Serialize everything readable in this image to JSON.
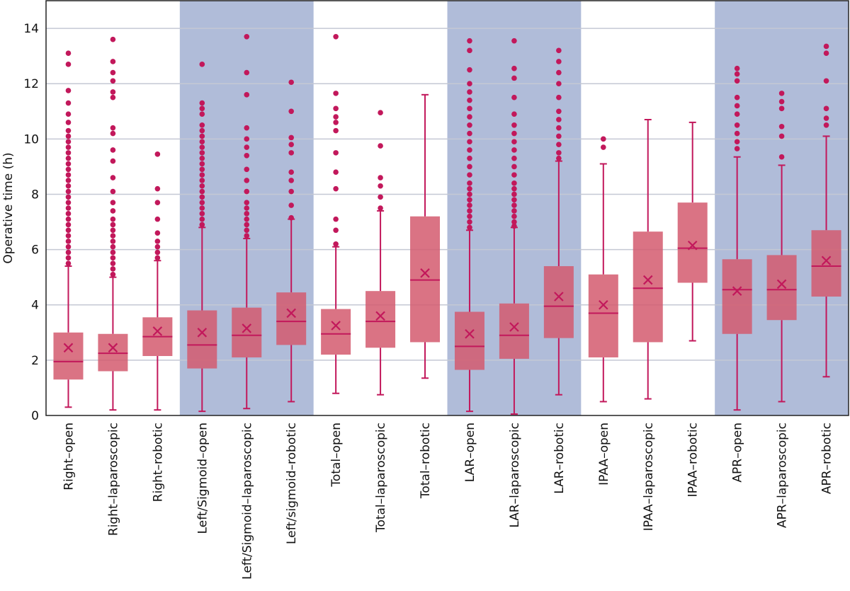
{
  "chart_data": {
    "type": "box",
    "title": "",
    "xlabel": "",
    "ylabel": "Operative time (h)",
    "ylim": [
      0,
      15
    ],
    "yticks": [
      0,
      2,
      4,
      6,
      8,
      10,
      12,
      14
    ],
    "grid": true,
    "colors": {
      "box": "#d45b6e",
      "line": "#c2185b",
      "outlier": "#c2185b",
      "shade": "#b0bcd9",
      "grid": "#c4c8d4",
      "axis": "#222222"
    },
    "groups": [
      {
        "name": "Right",
        "shaded": false
      },
      {
        "name": "Left/Sigmoid",
        "shaded": true
      },
      {
        "name": "Total",
        "shaded": false
      },
      {
        "name": "LAR",
        "shaded": true
      },
      {
        "name": "IPAA",
        "shaded": false
      },
      {
        "name": "APR",
        "shaded": true
      }
    ],
    "categories": [
      "Right–open",
      "Right–laparoscopic",
      "Right–robotic",
      "Left/Sigmoid–open",
      "Left/Sigmoid–laparoscopic",
      "Left/sigmoid–robotic",
      "Total–open",
      "Total–laparoscopic",
      "Total–robotic",
      "LAR–open",
      "LAR–laparoscopic",
      "LAR–robotic",
      "IPAA–open",
      "IPAA–laparoscopic",
      "IPAA–robotic",
      "APR–open",
      "APR–laparoscopic",
      "APR–robotic"
    ],
    "series": [
      {
        "name": "Right–open",
        "min": 0.3,
        "q1": 1.3,
        "median": 1.95,
        "q3": 3.0,
        "max": 5.4,
        "mean": 2.45,
        "outliers": [
          5.5,
          5.7,
          5.9,
          6.1,
          6.3,
          6.5,
          6.7,
          6.9,
          7.1,
          7.3,
          7.5,
          7.7,
          7.9,
          8.1,
          8.3,
          8.5,
          8.7,
          8.9,
          9.1,
          9.3,
          9.5,
          9.7,
          9.9,
          10.1,
          10.3,
          10.6,
          10.9,
          11.3,
          11.75,
          12.7,
          13.1
        ]
      },
      {
        "name": "Right–laparoscopic",
        "min": 0.2,
        "q1": 1.6,
        "median": 2.25,
        "q3": 2.95,
        "max": 5.0,
        "mean": 2.45,
        "outliers": [
          5.1,
          5.3,
          5.5,
          5.7,
          5.9,
          6.1,
          6.3,
          6.5,
          6.7,
          6.9,
          7.1,
          7.4,
          7.7,
          8.1,
          8.6,
          9.2,
          9.6,
          10.2,
          10.4,
          11.5,
          11.7,
          12.1,
          12.4,
          12.8,
          13.6
        ]
      },
      {
        "name": "Right–robotic",
        "min": 0.2,
        "q1": 2.15,
        "median": 2.85,
        "q3": 3.55,
        "max": 5.6,
        "mean": 3.05,
        "outliers": [
          5.7,
          5.9,
          6.1,
          6.3,
          6.6,
          7.1,
          7.7,
          8.2,
          9.45
        ]
      },
      {
        "name": "Left/Sigmoid–open",
        "min": 0.15,
        "q1": 1.7,
        "median": 2.55,
        "q3": 3.8,
        "max": 6.8,
        "mean": 3.0,
        "outliers": [
          6.9,
          7.1,
          7.3,
          7.5,
          7.7,
          7.9,
          8.1,
          8.3,
          8.5,
          8.7,
          8.9,
          9.1,
          9.3,
          9.5,
          9.7,
          9.9,
          10.1,
          10.3,
          10.5,
          10.9,
          11.1,
          11.3,
          12.7
        ]
      },
      {
        "name": "Left/Sigmoid–laparoscopic",
        "min": 0.25,
        "q1": 2.1,
        "median": 2.9,
        "q3": 3.9,
        "max": 6.4,
        "mean": 3.15,
        "outliers": [
          6.5,
          6.7,
          6.9,
          7.1,
          7.3,
          7.5,
          7.7,
          8.1,
          8.5,
          8.9,
          9.4,
          9.7,
          10.0,
          10.4,
          11.6,
          12.4,
          13.7
        ]
      },
      {
        "name": "Left/sigmoid–robotic",
        "min": 0.5,
        "q1": 2.55,
        "median": 3.4,
        "q3": 4.45,
        "max": 7.1,
        "mean": 3.7,
        "outliers": [
          7.15,
          7.6,
          8.1,
          8.5,
          8.8,
          9.5,
          9.8,
          10.05,
          11.0,
          12.05
        ]
      },
      {
        "name": "Total–open",
        "min": 0.8,
        "q1": 2.2,
        "median": 2.95,
        "q3": 3.85,
        "max": 6.1,
        "mean": 3.25,
        "outliers": [
          6.2,
          6.7,
          7.1,
          8.2,
          8.8,
          9.5,
          10.3,
          10.6,
          10.8,
          11.1,
          11.65,
          13.7
        ]
      },
      {
        "name": "Total–laparoscopic",
        "min": 0.75,
        "q1": 2.45,
        "median": 3.4,
        "q3": 4.5,
        "max": 7.4,
        "mean": 3.6,
        "outliers": [
          7.5,
          7.9,
          8.3,
          8.6,
          9.75,
          10.95
        ]
      },
      {
        "name": "Total–robotic",
        "min": 1.35,
        "q1": 2.65,
        "median": 4.9,
        "q3": 7.2,
        "max": 11.6,
        "mean": 5.15,
        "outliers": []
      },
      {
        "name": "LAR–open",
        "min": 0.15,
        "q1": 1.65,
        "median": 2.5,
        "q3": 3.75,
        "max": 6.7,
        "mean": 2.95,
        "outliers": [
          6.8,
          7.0,
          7.2,
          7.4,
          7.6,
          7.8,
          8.0,
          8.2,
          8.4,
          8.7,
          9.0,
          9.3,
          9.6,
          9.9,
          10.2,
          10.5,
          10.8,
          11.1,
          11.4,
          11.7,
          12.0,
          12.5,
          13.2,
          13.55
        ]
      },
      {
        "name": "LAR–laparoscopic",
        "min": 0.05,
        "q1": 2.05,
        "median": 2.9,
        "q3": 4.05,
        "max": 6.8,
        "mean": 3.2,
        "outliers": [
          6.85,
          7.0,
          7.2,
          7.4,
          7.6,
          7.8,
          8.0,
          8.2,
          8.4,
          8.7,
          9.0,
          9.3,
          9.6,
          9.9,
          10.2,
          10.5,
          10.9,
          11.5,
          12.2,
          12.55,
          13.55
        ]
      },
      {
        "name": "LAR–robotic",
        "min": 0.75,
        "q1": 2.8,
        "median": 3.95,
        "q3": 5.4,
        "max": 9.2,
        "mean": 4.3,
        "outliers": [
          9.3,
          9.5,
          9.8,
          10.1,
          10.4,
          10.7,
          11.0,
          11.5,
          12.0,
          12.4,
          12.8,
          13.2
        ]
      },
      {
        "name": "IPAA–open",
        "min": 0.5,
        "q1": 2.1,
        "median": 3.7,
        "q3": 5.1,
        "max": 9.1,
        "mean": 4.0,
        "outliers": [
          9.7,
          10.0
        ]
      },
      {
        "name": "IPAA–laparoscopic",
        "min": 0.6,
        "q1": 2.65,
        "median": 4.6,
        "q3": 6.65,
        "max": 10.7,
        "mean": 4.9,
        "outliers": []
      },
      {
        "name": "IPAA–robotic",
        "min": 2.7,
        "q1": 4.8,
        "median": 6.05,
        "q3": 7.7,
        "max": 10.6,
        "mean": 6.15,
        "outliers": []
      },
      {
        "name": "APR–open",
        "min": 0.2,
        "q1": 2.95,
        "median": 4.55,
        "q3": 5.65,
        "max": 9.35,
        "mean": 4.5,
        "outliers": [
          9.65,
          9.9,
          10.2,
          10.5,
          10.9,
          11.2,
          11.5,
          12.1,
          12.35,
          12.55
        ]
      },
      {
        "name": "APR–laparoscopic",
        "min": 0.5,
        "q1": 3.45,
        "median": 4.55,
        "q3": 5.8,
        "max": 9.05,
        "mean": 4.75,
        "outliers": [
          9.35,
          10.1,
          10.45,
          11.1,
          11.35,
          11.65
        ]
      },
      {
        "name": "APR–robotic",
        "min": 1.4,
        "q1": 4.3,
        "median": 5.4,
        "q3": 6.7,
        "max": 10.1,
        "mean": 5.6,
        "outliers": [
          10.5,
          10.75,
          11.1,
          12.1,
          13.1,
          13.35
        ]
      }
    ]
  }
}
